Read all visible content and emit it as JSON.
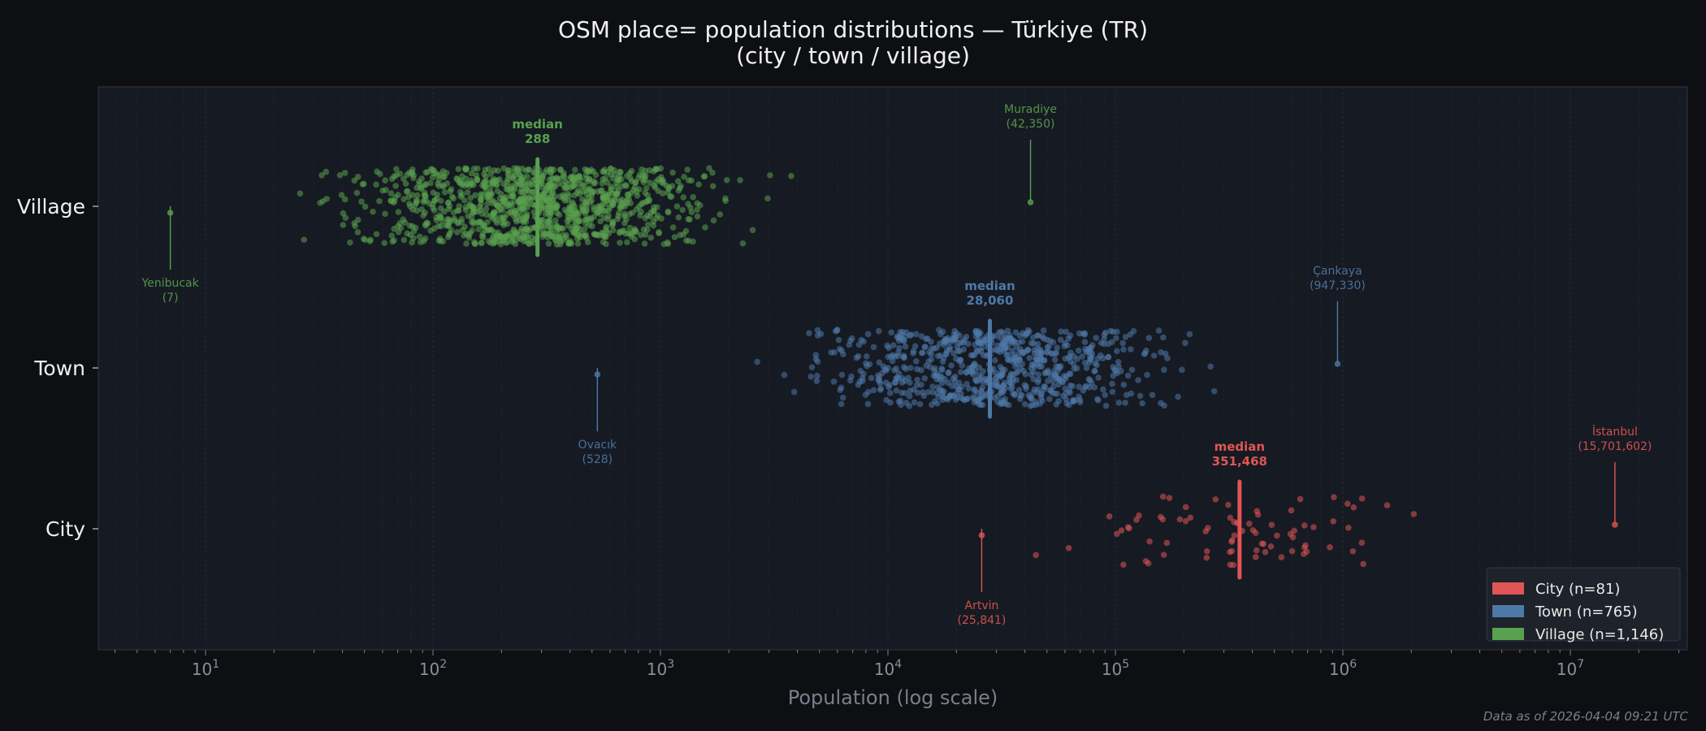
{
  "chart_data": {
    "type": "scatter",
    "title": "OSM place= population distributions — Türkiye (TR)",
    "subtitle": "(city / town / village)",
    "xlabel": "Population (log scale)",
    "ylabel": "",
    "xscale": "log",
    "xlim": [
      3.4,
      32000000
    ],
    "x_tick_labels": [
      {
        "base": "10",
        "exp": "1",
        "value": 10
      },
      {
        "base": "10",
        "exp": "2",
        "value": 100
      },
      {
        "base": "10",
        "exp": "3",
        "value": 1000
      },
      {
        "base": "10",
        "exp": "4",
        "value": 10000
      },
      {
        "base": "10",
        "exp": "5",
        "value": 100000
      },
      {
        "base": "10",
        "exp": "6",
        "value": 1000000
      },
      {
        "base": "10",
        "exp": "7",
        "value": 10000000
      }
    ],
    "categories": [
      "Village",
      "Town",
      "City"
    ],
    "grid": "vertical dashed",
    "legend_position": "bottom-right",
    "series": [
      {
        "name": "City",
        "legend": "City  (n=81)",
        "n": 81,
        "color": "#e05555",
        "median": 351468,
        "median_label": "median",
        "median_value_label": "351,468",
        "approx_log10_center": 5.55,
        "approx_log10_spread": 0.5,
        "min": {
          "name": "Artvin",
          "value": 25841,
          "value_label": "(25,841)",
          "position": "below"
        },
        "max": {
          "name": "İstanbul",
          "value": 15701602,
          "value_label": "(15,701,602)",
          "position": "above"
        }
      },
      {
        "name": "Town",
        "legend": "Town  (n=765)",
        "n": 765,
        "color": "#4e79a7",
        "median": 28060,
        "median_label": "median",
        "median_value_label": "28,060",
        "approx_log10_center": 4.45,
        "approx_log10_spread": 0.5,
        "min": {
          "name": "Ovacık",
          "value": 528,
          "value_label": "(528)",
          "position": "below"
        },
        "max": {
          "name": "Çankaya",
          "value": 947330,
          "value_label": "(947,330)",
          "position": "above"
        }
      },
      {
        "name": "Village",
        "legend": "Village  (n=1,146)",
        "n": 1146,
        "color": "#59a14f",
        "median": 288,
        "median_label": "median",
        "median_value_label": "288",
        "approx_log10_center": 2.46,
        "approx_log10_spread": 0.5,
        "min": {
          "name": "Yenibucak",
          "value": 7,
          "value_label": "(7)",
          "position": "below"
        },
        "max": {
          "name": "Muradiye",
          "value": 42350,
          "value_label": "(42,350)",
          "position": "above"
        }
      }
    ]
  },
  "footnote": "Data as of 2026-04-04 09:21 UTC"
}
